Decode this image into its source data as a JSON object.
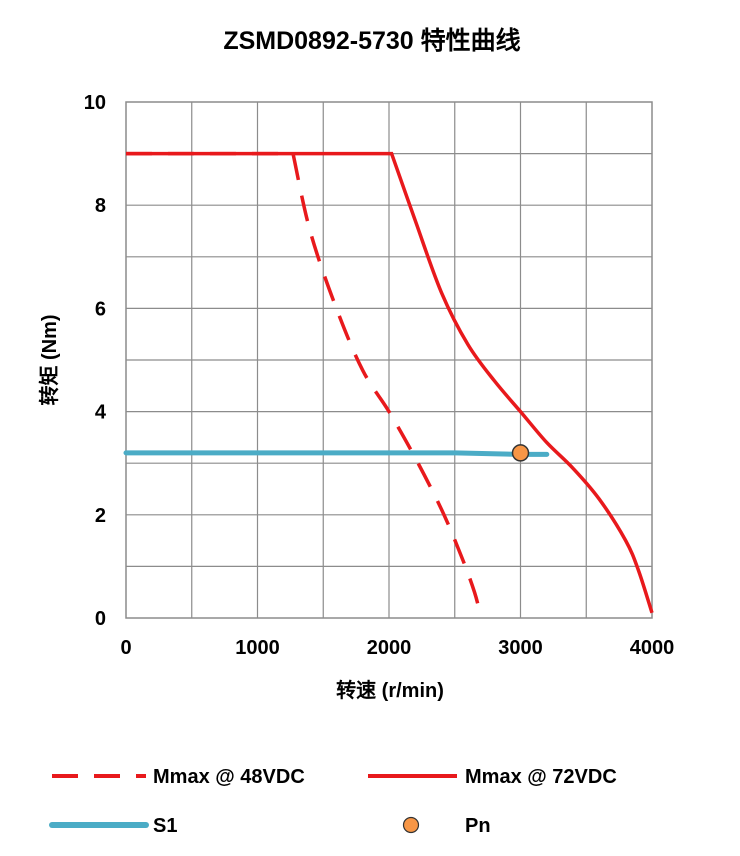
{
  "chart_data": {
    "type": "line",
    "title": "ZSMD0892-5730 特性曲线",
    "xlabel": "转速 (r/min)",
    "ylabel": "转矩 (Nm)",
    "xlim": [
      0,
      4000
    ],
    "ylim": [
      0,
      10
    ],
    "x_ticks": [
      0,
      1000,
      2000,
      3000,
      4000
    ],
    "y_ticks": [
      0,
      2,
      4,
      6,
      8,
      10
    ],
    "grid": true,
    "legend_position": "bottom",
    "series": [
      {
        "name": "Mmax @ 48VDC",
        "style": "dashed",
        "color": "#e8191c",
        "points": [
          [
            0,
            9
          ],
          [
            1270,
            9
          ],
          [
            1400,
            7.5
          ],
          [
            1600,
            6
          ],
          [
            1800,
            4.8
          ],
          [
            2000,
            4.0
          ],
          [
            2200,
            3.1
          ],
          [
            2400,
            2.1
          ],
          [
            2550,
            1.2
          ],
          [
            2650,
            0.5
          ],
          [
            2700,
            0
          ]
        ]
      },
      {
        "name": "Mmax @ 72VDC",
        "style": "solid",
        "color": "#e8191c",
        "points": [
          [
            0,
            9
          ],
          [
            2020,
            9
          ],
          [
            2200,
            7.7
          ],
          [
            2400,
            6.3
          ],
          [
            2600,
            5.3
          ],
          [
            2800,
            4.6
          ],
          [
            3000,
            4.0
          ],
          [
            3200,
            3.4
          ],
          [
            3400,
            2.9
          ],
          [
            3600,
            2.3
          ],
          [
            3800,
            1.5
          ],
          [
            3900,
            0.9
          ],
          [
            4000,
            0.1
          ]
        ]
      },
      {
        "name": "S1",
        "style": "solid",
        "color": "#4bacc6",
        "points": [
          [
            0,
            3.2
          ],
          [
            2500,
            3.2
          ],
          [
            3000,
            3.17
          ],
          [
            3200,
            3.17
          ]
        ]
      },
      {
        "name": "Pn",
        "style": "marker",
        "color": "#f79646",
        "points": [
          [
            3000,
            3.2
          ]
        ]
      }
    ]
  }
}
